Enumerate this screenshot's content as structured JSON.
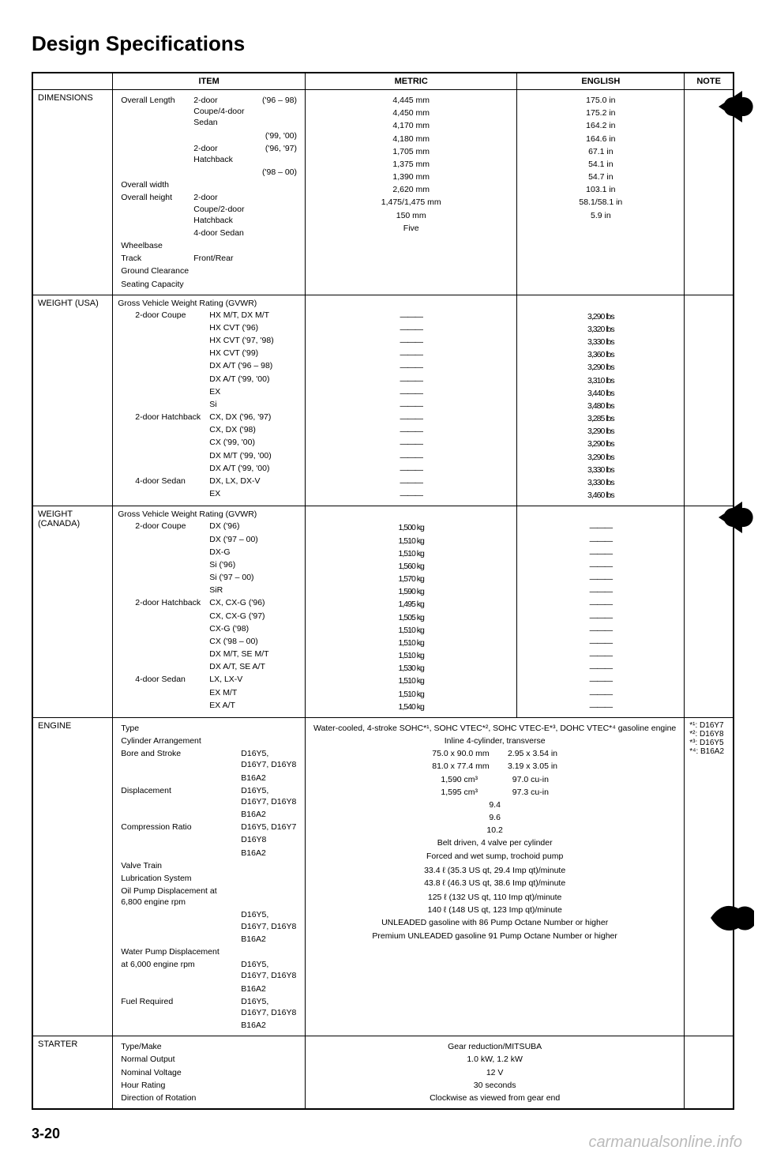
{
  "title": "Design Specifications",
  "page_number": "3-20",
  "watermark": "carmanualsonline.info",
  "headers": {
    "item": "ITEM",
    "metric": "METRIC",
    "english": "ENGLISH",
    "note": "NOTE"
  },
  "dimensions": {
    "label": "DIMENSIONS",
    "rows": [
      {
        "item": "Overall Length",
        "sub": "2-door Coupe/4-door Sedan",
        "y": "('96 – 98)",
        "m": "4,445 mm",
        "e": "175.0 in"
      },
      {
        "item": "",
        "sub": "",
        "y": "('99, '00)",
        "m": "4,450 mm",
        "e": "175.2 in"
      },
      {
        "item": "",
        "sub": "2-door Hatchback",
        "y": "('96, '97)",
        "m": "4,170 mm",
        "e": "164.2 in"
      },
      {
        "item": "",
        "sub": "",
        "y": "('98 – 00)",
        "m": "4,180 mm",
        "e": "164.6 in"
      },
      {
        "item": "Overall width",
        "sub": "",
        "y": "",
        "m": "1,705 mm",
        "e": "67.1 in"
      },
      {
        "item": "Overall height",
        "sub": "2-door Coupe/2-door Hatchback",
        "y": "",
        "m": "1,375 mm",
        "e": "54.1 in"
      },
      {
        "item": "",
        "sub": "4-door Sedan",
        "y": "",
        "m": "1,390 mm",
        "e": "54.7 in"
      },
      {
        "item": "Wheelbase",
        "sub": "",
        "y": "",
        "m": "2,620 mm",
        "e": "103.1 in"
      },
      {
        "item": "Track",
        "sub": "Front/Rear",
        "y": "",
        "m": "1,475/1,475 mm",
        "e": "58.1/58.1 in"
      },
      {
        "item": "Ground Clearance",
        "sub": "",
        "y": "",
        "m": "150 mm",
        "e": "5.9 in"
      },
      {
        "item": "Seating Capacity",
        "sub": "",
        "y": "",
        "m": "Five",
        "e": ""
      }
    ]
  },
  "weight_usa": {
    "label": "WEIGHT (USA)",
    "heading": "Gross Vehicle Weight Rating (GVWR)",
    "rows": [
      {
        "g": "2-door Coupe",
        "v": "HX M/T, DX M/T",
        "m": "———",
        "e": "3,290 lbs"
      },
      {
        "g": "",
        "v": "HX CVT ('96)",
        "m": "———",
        "e": "3,320 lbs"
      },
      {
        "g": "",
        "v": "HX CVT ('97, '98)",
        "m": "———",
        "e": "3,330 lbs"
      },
      {
        "g": "",
        "v": "HX CVT ('99)",
        "m": "———",
        "e": "3,360 lbs"
      },
      {
        "g": "",
        "v": "DX A/T ('96 – 98)",
        "m": "———",
        "e": "3,290 lbs"
      },
      {
        "g": "",
        "v": "DX A/T ('99, '00)",
        "m": "———",
        "e": "3,310 lbs"
      },
      {
        "g": "",
        "v": "EX",
        "m": "———",
        "e": "3,440 lbs"
      },
      {
        "g": "",
        "v": "Si",
        "m": "———",
        "e": "3,480 lbs"
      },
      {
        "g": "2-door Hatchback",
        "v": "CX, DX ('96, '97)",
        "m": "———",
        "e": "3,285 lbs"
      },
      {
        "g": "",
        "v": "CX, DX ('98)",
        "m": "———",
        "e": "3,290 lbs"
      },
      {
        "g": "",
        "v": "CX ('99, '00)",
        "m": "———",
        "e": "3,290 lbs"
      },
      {
        "g": "",
        "v": "DX M/T ('99, '00)",
        "m": "———",
        "e": "3,290 lbs"
      },
      {
        "g": "",
        "v": "DX A/T ('99, '00)",
        "m": "———",
        "e": "3,330 lbs"
      },
      {
        "g": "4-door Sedan",
        "v": "DX, LX, DX-V",
        "m": "———",
        "e": "3,330 lbs"
      },
      {
        "g": "",
        "v": "EX",
        "m": "———",
        "e": "3,460 lbs"
      }
    ]
  },
  "weight_canada": {
    "label": "WEIGHT (CANADA)",
    "heading": "Gross Vehicle Weight Rating (GVWR)",
    "rows": [
      {
        "g": "2-door Coupe",
        "v": "DX ('96)",
        "m": "1,500 kg",
        "e": "———"
      },
      {
        "g": "",
        "v": "DX ('97 – 00)",
        "m": "1,510 kg",
        "e": "———"
      },
      {
        "g": "",
        "v": "DX-G",
        "m": "1,510 kg",
        "e": "———"
      },
      {
        "g": "",
        "v": "Si ('96)",
        "m": "1,560 kg",
        "e": "———"
      },
      {
        "g": "",
        "v": "Si ('97 – 00)",
        "m": "1,570 kg",
        "e": "———"
      },
      {
        "g": "",
        "v": "SiR",
        "m": "1,590 kg",
        "e": "———"
      },
      {
        "g": "2-door Hatchback",
        "v": "CX, CX-G ('96)",
        "m": "1,495 kg",
        "e": "———"
      },
      {
        "g": "",
        "v": "CX, CX-G ('97)",
        "m": "1,505 kg",
        "e": "———"
      },
      {
        "g": "",
        "v": "CX-G ('98)",
        "m": "1,510 kg",
        "e": "———"
      },
      {
        "g": "",
        "v": "CX ('98 – 00)",
        "m": "1,510 kg",
        "e": "———"
      },
      {
        "g": "",
        "v": "DX M/T, SE M/T",
        "m": "1,510 kg",
        "e": "———"
      },
      {
        "g": "",
        "v": "DX A/T, SE A/T",
        "m": "1,530 kg",
        "e": "———"
      },
      {
        "g": "4-door Sedan",
        "v": "LX, LX-V",
        "m": "1,510 kg",
        "e": "———"
      },
      {
        "g": "",
        "v": "EX M/T",
        "m": "1,510 kg",
        "e": "———"
      },
      {
        "g": "",
        "v": "EX A/T",
        "m": "1,540 kg",
        "e": "———"
      }
    ]
  },
  "engine": {
    "label": "ENGINE",
    "note": "*¹: D16Y7\n*²: D16Y8\n*³: D16Y5\n*⁴: B16A2",
    "rows": [
      {
        "l": "Type",
        "c": "",
        "r": "Water-cooled, 4-stroke SOHC*¹, SOHC VTEC*², SOHC VTEC-E*³, DOHC VTEC*⁴ gasoline engine"
      },
      {
        "l": "Cylinder Arrangement",
        "c": "",
        "r": "Inline 4-cylinder, transverse"
      },
      {
        "l": "Bore and Stroke",
        "c": "D16Y5, D16Y7, D16Y8",
        "r": "75.0 x 90.0 mm        2.95 x 3.54 in"
      },
      {
        "l": "",
        "c": "B16A2",
        "r": "81.0 x 77.4 mm        3.19 x 3.05 in"
      },
      {
        "l": "Displacement",
        "c": "D16Y5, D16Y7, D16Y8",
        "r": "1,590 cm³               97.0 cu-in"
      },
      {
        "l": "",
        "c": "B16A2",
        "r": "1,595 cm³               97.3 cu-in"
      },
      {
        "l": "Compression Ratio",
        "c": "D16Y5, D16Y7",
        "r": "9.4"
      },
      {
        "l": "",
        "c": "D16Y8",
        "r": "9.6"
      },
      {
        "l": "",
        "c": "B16A2",
        "r": "10.2"
      },
      {
        "l": "Valve Train",
        "c": "",
        "r": "Belt driven, 4 valve per cylinder"
      },
      {
        "l": "Lubrication System",
        "c": "",
        "r": "Forced and wet sump, trochoid pump"
      },
      {
        "l": "Oil Pump Displacement at 6,800 engine rpm",
        "c": "",
        "r": ""
      },
      {
        "l": "",
        "c": "D16Y5, D16Y7, D16Y8",
        "r": "33.4 ℓ (35.3 US qt, 29.4 Imp qt)/minute"
      },
      {
        "l": "",
        "c": "B16A2",
        "r": "43.8 ℓ (46.3 US qt, 38.6 Imp qt)/minute"
      },
      {
        "l": "Water Pump Displacement",
        "c": "",
        "r": ""
      },
      {
        "l": "at 6,000 engine rpm",
        "c": "D16Y5, D16Y7, D16Y8",
        "r": "125 ℓ (132 US qt, 110 Imp qt)/minute"
      },
      {
        "l": "",
        "c": "B16A2",
        "r": "140 ℓ (148 US qt, 123 Imp qt)/minute"
      },
      {
        "l": "Fuel Required",
        "c": "D16Y5, D16Y7, D16Y8",
        "r": "UNLEADED gasoline with 86 Pump Octane Number or higher"
      },
      {
        "l": "",
        "c": "B16A2",
        "r": "Premium UNLEADED gasoline 91 Pump Octane Number or higher"
      }
    ]
  },
  "starter": {
    "label": "STARTER",
    "rows": [
      {
        "l": "Type/Make",
        "r": "Gear reduction/MITSUBA"
      },
      {
        "l": "Normal Output",
        "r": "1.0 kW, 1.2 kW"
      },
      {
        "l": "Nominal Voltage",
        "r": "12 V"
      },
      {
        "l": "Hour Rating",
        "r": "30 seconds"
      },
      {
        "l": "Direction of Rotation",
        "r": "Clockwise as viewed from gear end"
      }
    ]
  }
}
